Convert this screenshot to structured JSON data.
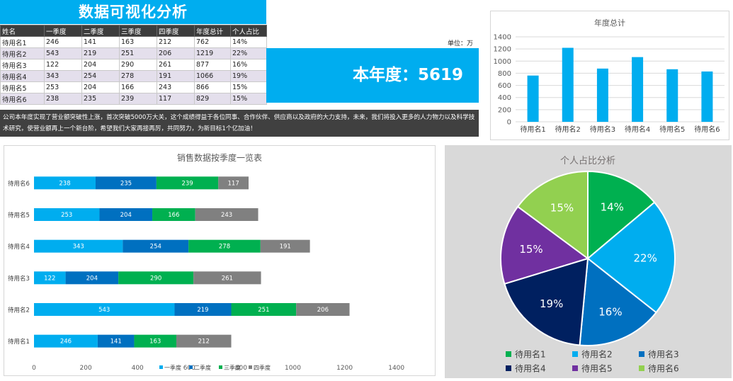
{
  "header": {
    "title": "数据可视化分析"
  },
  "table": {
    "columns": [
      "姓名",
      "一季度",
      "二季度",
      "三季度",
      "四季度",
      "年度总计",
      "个人占比"
    ],
    "rows": [
      [
        "待用名1",
        "246",
        "141",
        "163",
        "212",
        "762",
        "14%"
      ],
      [
        "待用名2",
        "543",
        "219",
        "251",
        "206",
        "1219",
        "22%"
      ],
      [
        "待用名3",
        "122",
        "204",
        "290",
        "261",
        "877",
        "16%"
      ],
      [
        "待用名4",
        "343",
        "254",
        "278",
        "191",
        "1066",
        "19%"
      ],
      [
        "待用名5",
        "253",
        "204",
        "166",
        "243",
        "866",
        "15%"
      ],
      [
        "待用名6",
        "238",
        "235",
        "239",
        "117",
        "829",
        "15%"
      ]
    ]
  },
  "unit": "单位：万",
  "total": {
    "text": "本年度：5619"
  },
  "note": "公司本年度实现了营业额突破性上涨，首次突破5000万大关，这个成绩得益于各位同事、合作伙伴、供应商以及政府的大力支持，未来，我们将投入更多的人力物力以及科学技术研究，使营业额再上一个新台阶，希望我们大家再接再厉，共同努力，为新目标1个亿加油！",
  "colors": {
    "accent": "#00adef",
    "q1": "#00adef",
    "q2": "#0070c0",
    "q3": "#00b050",
    "q4": "#808080",
    "pie": [
      "#00b050",
      "#00adef",
      "#0070c0",
      "#002060",
      "#7030a0",
      "#92d050"
    ]
  },
  "chart_data": [
    {
      "type": "bar",
      "title": "年度总计",
      "categories": [
        "待用名1",
        "待用名2",
        "待用名3",
        "待用名4",
        "待用名5",
        "待用名6"
      ],
      "values": [
        762,
        1219,
        877,
        1066,
        866,
        829
      ],
      "ylim": [
        0,
        1400
      ],
      "yticks": [
        0,
        200,
        400,
        600,
        800,
        1000,
        1200,
        1400
      ],
      "grid": true
    },
    {
      "type": "bar",
      "orientation": "horizontal",
      "stacked": true,
      "title": "销售数据按季度一览表",
      "categories": [
        "待用名1",
        "待用名2",
        "待用名3",
        "待用名4",
        "待用名5",
        "待用名6"
      ],
      "series": [
        {
          "name": "一季度",
          "values": [
            246,
            543,
            122,
            343,
            253,
            238
          ]
        },
        {
          "name": "二季度",
          "values": [
            141,
            219,
            204,
            254,
            204,
            235
          ]
        },
        {
          "name": "三季度",
          "values": [
            163,
            251,
            290,
            278,
            166,
            239
          ]
        },
        {
          "name": "四季度",
          "values": [
            212,
            206,
            261,
            191,
            243,
            117
          ]
        }
      ],
      "xlim": [
        0,
        1400
      ],
      "xticks": [
        0,
        200,
        400,
        600,
        800,
        1000,
        1200,
        1400
      ],
      "legend": "bottom"
    },
    {
      "type": "pie",
      "title": "个人占比分析",
      "labels": [
        "待用名1",
        "待用名2",
        "待用名3",
        "待用名4",
        "待用名5",
        "待用名6"
      ],
      "values": [
        14,
        22,
        16,
        19,
        15,
        15
      ],
      "value_labels": [
        "14%",
        "22%",
        "16%",
        "19%",
        "15%",
        "15%"
      ],
      "legend": "bottom"
    }
  ]
}
